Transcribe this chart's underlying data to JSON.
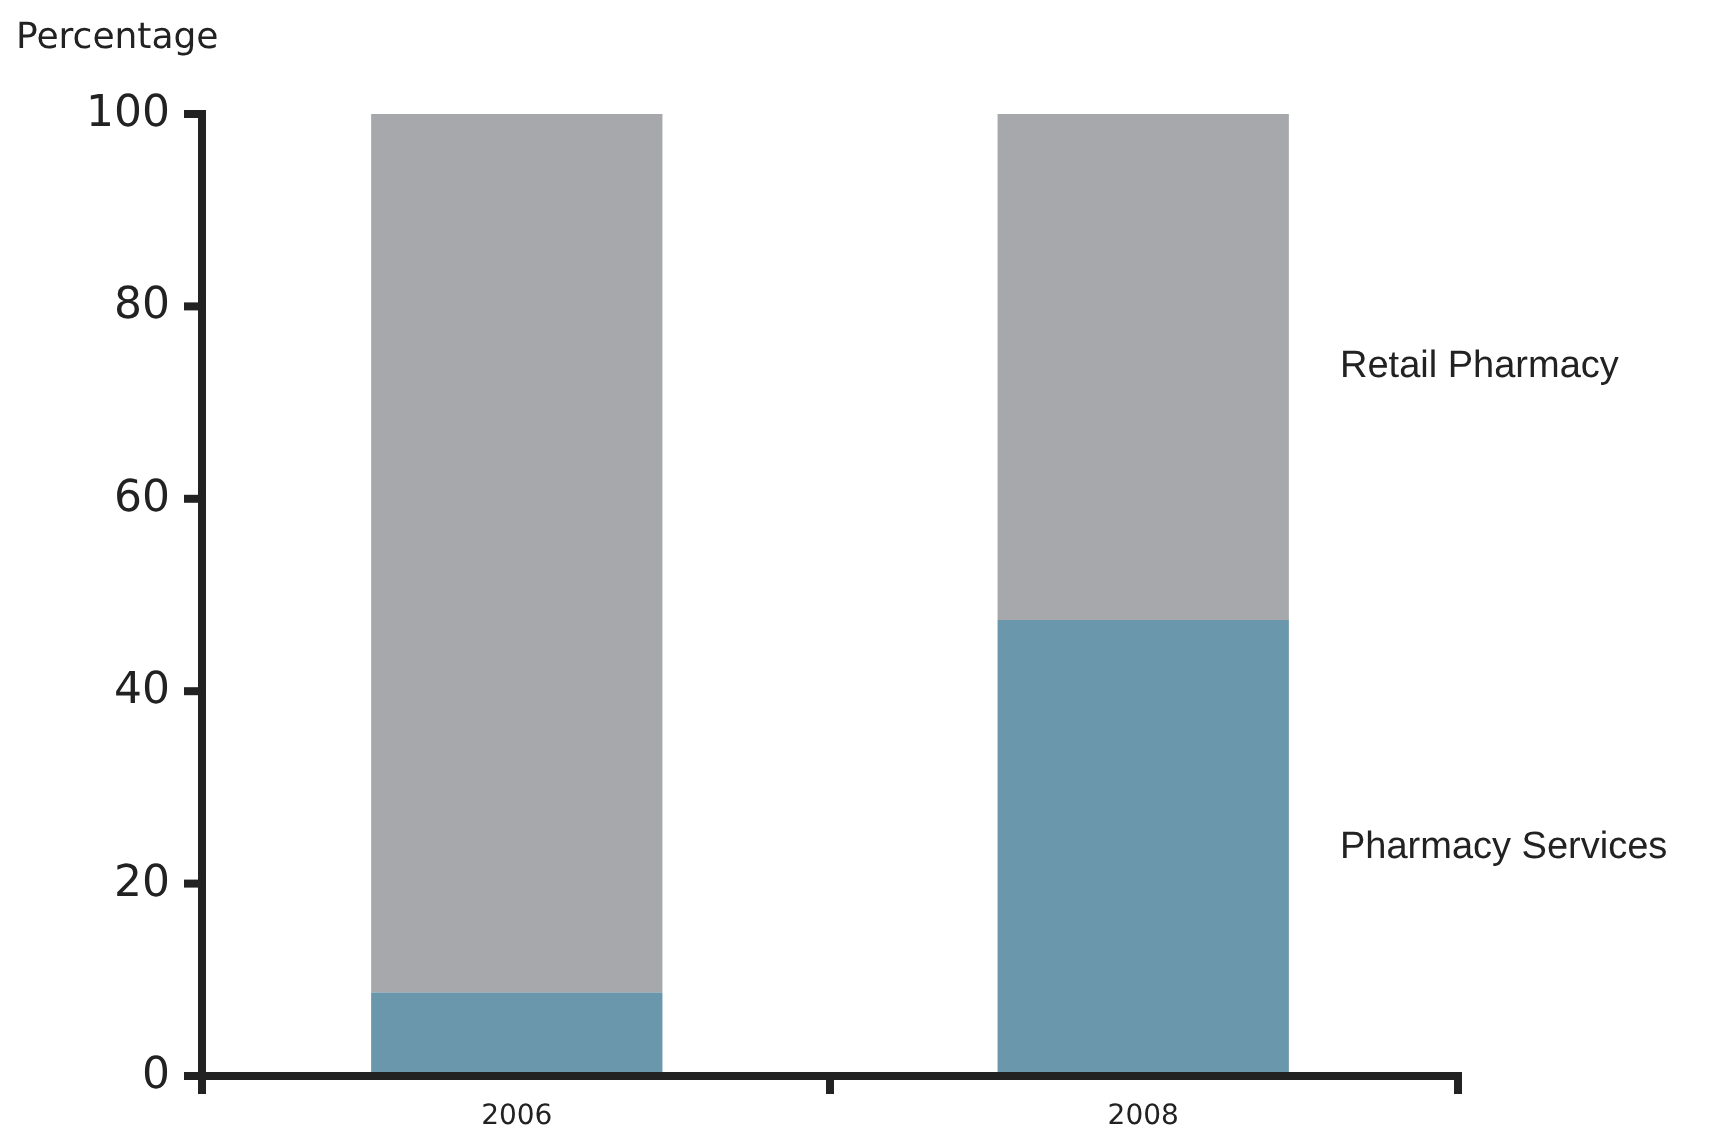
{
  "chart_data": {
    "type": "bar",
    "stacked": true,
    "ylabel": "Percentage",
    "categories": [
      "2006",
      "2008"
    ],
    "series": [
      {
        "name": "Pharmacy Services",
        "color": "#6a97ab",
        "values": [
          8.7,
          47.4
        ]
      },
      {
        "name": "Retail Pharmacy",
        "color": "#a7a8ac",
        "values": [
          91.3,
          52.6
        ]
      }
    ],
    "ylim": [
      0,
      100
    ],
    "yticks": [
      0,
      20,
      40,
      60,
      80,
      100
    ],
    "grid": false
  }
}
